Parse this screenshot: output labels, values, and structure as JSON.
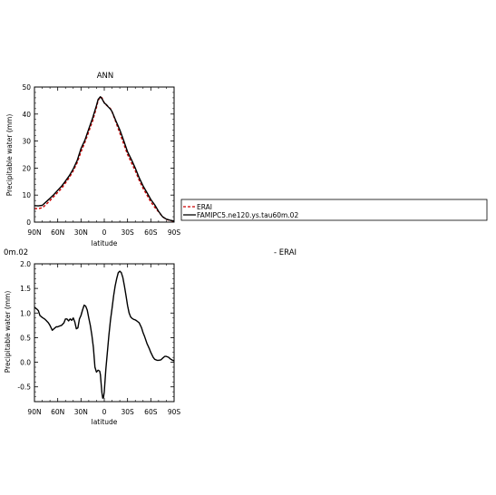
{
  "colors": {
    "erai": "#cc0000",
    "model": "#000000"
  },
  "chart_data": [
    {
      "type": "line",
      "title": "ANN",
      "xlabel": "latitude",
      "ylabel": "Precipitable water (mm)",
      "xlim": [
        90,
        -90
      ],
      "ylim": [
        0,
        50
      ],
      "xticks": [
        90,
        60,
        30,
        0,
        -30,
        -60,
        -90
      ],
      "xticklabels": [
        "90N",
        "60N",
        "30N",
        "0",
        "30S",
        "60S",
        "90S"
      ],
      "yticks": [
        0,
        10,
        20,
        30,
        40,
        50
      ],
      "yticklabels": [
        "0",
        "10",
        "20",
        "30",
        "40",
        "50"
      ],
      "legend": {
        "placement": "right, outside plot",
        "entries": [
          "ERAI",
          "FAMIPC5.ne120.ys.tau60m.02"
        ]
      },
      "series": [
        {
          "name": "ERAI",
          "style": "dashed",
          "x": [
            90,
            85,
            80,
            75,
            70,
            65,
            60,
            55,
            50,
            45,
            40,
            35,
            30,
            25,
            20,
            15,
            10,
            8,
            5,
            3,
            0,
            -3,
            -5,
            -8,
            -10,
            -15,
            -20,
            -25,
            -30,
            -35,
            -40,
            -45,
            -50,
            -55,
            -60,
            -65,
            -70,
            -75,
            -80,
            -85,
            -90
          ],
          "y": [
            5.0,
            5.0,
            5.3,
            6.5,
            8.0,
            9.5,
            11.0,
            12.5,
            14.5,
            16.5,
            19.0,
            22.0,
            26.0,
            29.5,
            33.5,
            37.5,
            42.5,
            45.0,
            46.3,
            46.0,
            44.2,
            43.2,
            42.8,
            42.0,
            40.8,
            37.0,
            33.0,
            29.0,
            25.0,
            22.0,
            19.0,
            15.5,
            12.5,
            10.0,
            7.5,
            5.5,
            3.8,
            2.0,
            1.0,
            0.6,
            0.3
          ]
        },
        {
          "name": "FAMIPC5.ne120.ys.tau60m.02",
          "style": "solid",
          "x": [
            90,
            85,
            80,
            75,
            70,
            65,
            60,
            55,
            50,
            45,
            40,
            35,
            30,
            25,
            20,
            15,
            10,
            8,
            5,
            3,
            0,
            -3,
            -5,
            -8,
            -10,
            -15,
            -20,
            -25,
            -30,
            -35,
            -40,
            -45,
            -50,
            -55,
            -60,
            -65,
            -70,
            -75,
            -80,
            -85,
            -90
          ],
          "y": [
            6.1,
            6.0,
            6.2,
            7.5,
            8.8,
            10.2,
            11.8,
            13.3,
            15.2,
            17.2,
            19.7,
            22.8,
            27.2,
            30.3,
            34.5,
            38.6,
            43.2,
            45.4,
            46.4,
            45.7,
            44.1,
            43.4,
            42.7,
            41.8,
            40.9,
            37.5,
            34.2,
            30.2,
            26.0,
            23.2,
            20.0,
            16.4,
            13.4,
            10.9,
            8.4,
            6.4,
            4.0,
            2.0,
            1.1,
            0.7,
            0.4
          ]
        }
      ]
    },
    {
      "type": "line",
      "title_fragment": "0m.02",
      "title_fragment_right": "- ERAI",
      "xlabel": "latitude",
      "ylabel": "Precipitable water (mm)",
      "xlim": [
        90,
        -90
      ],
      "ylim": [
        -0.8,
        2.0
      ],
      "xticks": [
        90,
        60,
        30,
        0,
        -30,
        -60,
        -90
      ],
      "xticklabels": [
        "90N",
        "60N",
        "30N",
        "0",
        "30S",
        "60S",
        "90S"
      ],
      "yticks": [
        2.0,
        1.5,
        1.0,
        0.5,
        0.0,
        -0.5
      ],
      "yticklabels": [
        "2.0",
        "1.5",
        "1.0",
        "0.5",
        "0.0",
        "-0.5"
      ],
      "series": [
        {
          "style": "solid",
          "x": [
            90,
            87,
            85,
            83,
            80,
            77,
            75,
            72,
            70,
            67,
            65,
            62,
            60,
            57,
            55,
            52,
            50,
            48,
            46,
            44,
            42,
            40,
            38,
            36,
            34,
            32,
            30,
            28,
            26,
            24,
            22,
            20,
            18,
            16,
            14,
            12,
            10,
            8,
            6,
            5,
            4,
            3,
            2,
            1,
            0,
            -2,
            -4,
            -6,
            -8,
            -10,
            -12,
            -14,
            -16,
            -18,
            -20,
            -22,
            -24,
            -26,
            -28,
            -30,
            -32,
            -34,
            -36,
            -38,
            -40,
            -42,
            -45,
            -48,
            -50,
            -52,
            -55,
            -58,
            -60,
            -63,
            -65,
            -68,
            -70,
            -73,
            -75,
            -78,
            -80,
            -83,
            -85,
            -88,
            -90
          ],
          "y": [
            1.12,
            1.08,
            1.05,
            0.95,
            0.91,
            0.88,
            0.85,
            0.8,
            0.75,
            0.65,
            0.68,
            0.72,
            0.72,
            0.74,
            0.75,
            0.8,
            0.88,
            0.88,
            0.84,
            0.88,
            0.85,
            0.9,
            0.82,
            0.68,
            0.7,
            0.88,
            0.95,
            1.06,
            1.16,
            1.14,
            1.06,
            0.9,
            0.75,
            0.55,
            0.3,
            -0.1,
            -0.2,
            -0.16,
            -0.18,
            -0.25,
            -0.45,
            -0.62,
            -0.73,
            -0.72,
            -0.6,
            -0.15,
            0.2,
            0.55,
            0.85,
            1.1,
            1.35,
            1.55,
            1.7,
            1.82,
            1.85,
            1.82,
            1.72,
            1.55,
            1.35,
            1.15,
            1.0,
            0.92,
            0.89,
            0.87,
            0.86,
            0.84,
            0.8,
            0.7,
            0.6,
            0.52,
            0.38,
            0.28,
            0.2,
            0.1,
            0.06,
            0.04,
            0.04,
            0.05,
            0.08,
            0.12,
            0.12,
            0.1,
            0.07,
            0.04,
            0.03
          ]
        }
      ]
    }
  ]
}
